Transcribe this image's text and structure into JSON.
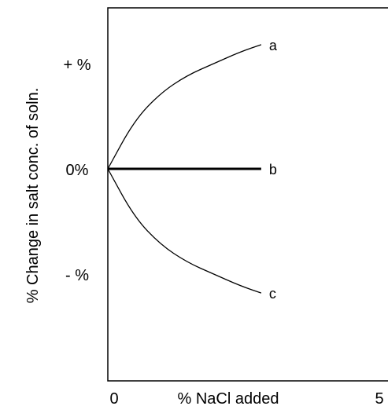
{
  "chart_data": {
    "type": "line",
    "xlabel": "% NaCl added",
    "ylabel": "% Change in salt conc. of soln.",
    "xlim": [
      0,
      5
    ],
    "ylim": [
      -1.1,
      1.1
    ],
    "x_tick_labels": [
      "0",
      "5"
    ],
    "y_tick_labels": [
      "+ %",
      "0%",
      "- %"
    ],
    "y_tick_values": [
      0.72,
      0,
      -0.72
    ],
    "series": [
      {
        "name": "a",
        "x": [
          0,
          0.5,
          1,
          1.5,
          2,
          2.5,
          2.9
        ],
        "y": [
          0,
          0.33,
          0.52,
          0.64,
          0.72,
          0.8,
          0.85
        ],
        "stroke": "thin"
      },
      {
        "name": "b",
        "x": [
          0,
          2.9
        ],
        "y": [
          0,
          0
        ],
        "stroke": "thick"
      },
      {
        "name": "c",
        "x": [
          0,
          0.5,
          1,
          1.5,
          2,
          2.5,
          2.9
        ],
        "y": [
          0,
          -0.33,
          -0.52,
          -0.64,
          -0.72,
          -0.8,
          -0.85
        ],
        "stroke": "thin"
      }
    ],
    "grid": false,
    "legend": "inline labels at line ends"
  }
}
